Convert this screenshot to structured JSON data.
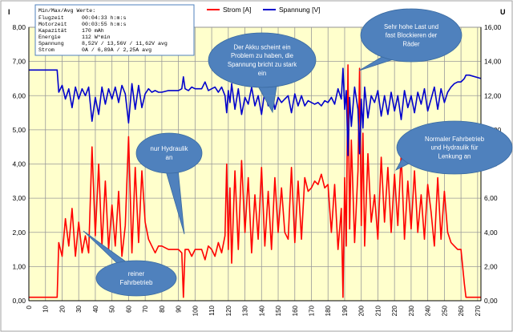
{
  "chart_data": {
    "type": "line",
    "left_axis": {
      "label": "I",
      "ylim": [
        0,
        8
      ],
      "ticks": [
        "0,00",
        "1,00",
        "2,00",
        "3,00",
        "4,00",
        "5,00",
        "6,00",
        "7,00",
        "8,00"
      ]
    },
    "right_axis": {
      "label": "U",
      "ylim": [
        0,
        16
      ],
      "ticks": [
        "0,00",
        "2,00",
        "4,00",
        "6,00",
        "8,00",
        "10,00",
        "12,00",
        "14,00",
        "16,00"
      ]
    },
    "x_axis": {
      "xlim": [
        0,
        272
      ],
      "ticks": [
        0,
        10,
        20,
        30,
        40,
        50,
        60,
        70,
        80,
        90,
        100,
        110,
        120,
        130,
        140,
        150,
        160,
        170,
        180,
        190,
        200,
        210,
        220,
        230,
        240,
        250,
        260,
        270
      ]
    },
    "grid": true,
    "legend_position": "top",
    "series": [
      {
        "name": "Strom [A]",
        "axis": "left",
        "color": "#ff0000",
        "x": [
          0,
          17,
          18,
          20,
          22,
          24,
          26,
          28,
          30,
          32,
          34,
          36,
          38,
          40,
          42,
          44,
          46,
          48,
          50,
          52,
          54,
          56,
          58,
          60,
          62,
          64,
          66,
          68,
          70,
          72,
          74,
          76,
          78,
          80,
          84,
          88,
          90,
          92,
          93,
          94,
          96,
          98,
          100,
          104,
          106,
          108,
          110,
          112,
          114,
          116,
          118,
          119,
          120,
          121,
          122,
          124,
          126,
          128,
          130,
          132,
          134,
          136,
          138,
          140,
          142,
          144,
          146,
          148,
          150,
          152,
          154,
          156,
          158,
          160,
          162,
          164,
          166,
          168,
          170,
          172,
          174,
          176,
          178,
          180,
          182,
          184,
          186,
          188,
          189,
          190,
          191,
          192,
          193,
          194,
          196,
          198,
          199,
          200,
          201,
          202,
          204,
          206,
          208,
          210,
          212,
          214,
          216,
          218,
          220,
          222,
          224,
          226,
          228,
          230,
          232,
          234,
          236,
          238,
          240,
          242,
          244,
          246,
          248,
          250,
          252,
          254,
          256,
          258,
          260,
          262,
          263,
          265,
          272
        ],
        "y": [
          0.1,
          0.1,
          1.7,
          1.3,
          2.4,
          1.6,
          2.7,
          1.3,
          2.3,
          1.4,
          1.9,
          1.4,
          4.5,
          1.9,
          4.0,
          1.6,
          3.5,
          1.5,
          2.8,
          1.6,
          3.2,
          1.3,
          2.2,
          4.8,
          1.4,
          3.9,
          1.7,
          3.8,
          2.3,
          1.8,
          1.6,
          1.4,
          1.6,
          1.6,
          1.5,
          1.5,
          1.5,
          1.4,
          0.1,
          1.5,
          1.5,
          1.3,
          1.5,
          1.5,
          1.2,
          1.6,
          1.5,
          1.3,
          1.7,
          1.4,
          1.9,
          4.0,
          1.5,
          3.3,
          1.1,
          3.8,
          1.5,
          4.1,
          2.0,
          3.6,
          1.4,
          3.1,
          1.8,
          3.9,
          1.6,
          3.2,
          1.5,
          3.6,
          2.0,
          3.3,
          2.0,
          1.8,
          3.9,
          1.7,
          3.5,
          1.8,
          3.6,
          3.2,
          3.3,
          3.5,
          3.4,
          3.7,
          3.3,
          3.4,
          2.0,
          3.4,
          1.5,
          2.7,
          0.1,
          3.6,
          1.6,
          6.9,
          2.1,
          4.7,
          1.7,
          3.8,
          6.8,
          2.2,
          4.9,
          1.6,
          4.3,
          2.3,
          3.1,
          1.8,
          4.2,
          2.3,
          3.9,
          2.0,
          3.7,
          2.2,
          4.3,
          1.8,
          3.5,
          2.1,
          3.8,
          2.0,
          3.1,
          1.8,
          3.4,
          2.6,
          1.6,
          3.6,
          1.8,
          3.2,
          2.0,
          1.7,
          1.6,
          1.5,
          1.5,
          0.5,
          0.1,
          0.1,
          0.1
        ]
      },
      {
        "name": "Spannung [V]",
        "axis": "right",
        "color": "#0000cc",
        "x": [
          0,
          17,
          18,
          20,
          22,
          24,
          26,
          28,
          30,
          32,
          34,
          36,
          38,
          40,
          42,
          44,
          46,
          48,
          50,
          52,
          54,
          56,
          58,
          60,
          62,
          64,
          66,
          68,
          70,
          72,
          74,
          76,
          78,
          80,
          84,
          88,
          90,
          92,
          93,
          94,
          96,
          98,
          100,
          104,
          106,
          108,
          110,
          112,
          114,
          116,
          118,
          119,
          120,
          121,
          122,
          124,
          126,
          128,
          130,
          132,
          134,
          136,
          138,
          140,
          142,
          144,
          146,
          148,
          150,
          152,
          154,
          156,
          158,
          160,
          162,
          164,
          166,
          168,
          170,
          172,
          174,
          176,
          178,
          180,
          182,
          184,
          186,
          188,
          189,
          190,
          191,
          192,
          193,
          194,
          196,
          198,
          199,
          200,
          201,
          202,
          204,
          206,
          208,
          210,
          212,
          214,
          216,
          218,
          220,
          222,
          224,
          226,
          228,
          230,
          232,
          234,
          236,
          238,
          240,
          242,
          244,
          246,
          248,
          250,
          252,
          254,
          256,
          258,
          260,
          262,
          263,
          265,
          272
        ],
        "y": [
          13.5,
          13.5,
          12.2,
          12.6,
          11.8,
          12.4,
          11.3,
          12.5,
          11.8,
          12.4,
          12.0,
          12.5,
          10.5,
          11.9,
          10.9,
          12.5,
          11.5,
          12.4,
          11.8,
          12.5,
          11.6,
          12.6,
          12.1,
          10.4,
          12.7,
          11.2,
          12.6,
          11.3,
          12.1,
          12.4,
          12.2,
          12.3,
          12.2,
          12.2,
          12.3,
          12.3,
          12.3,
          12.4,
          13.1,
          12.4,
          12.3,
          12.5,
          12.4,
          12.4,
          12.8,
          12.3,
          12.4,
          12.5,
          12.2,
          12.5,
          12.0,
          11.0,
          12.3,
          11.6,
          12.7,
          11.2,
          12.4,
          10.9,
          11.9,
          11.5,
          12.5,
          11.4,
          12.0,
          10.9,
          12.3,
          11.4,
          12.3,
          11.2,
          11.9,
          11.6,
          11.8,
          12.0,
          11.0,
          12.1,
          11.4,
          12.0,
          11.4,
          11.7,
          11.6,
          11.5,
          11.6,
          11.4,
          11.7,
          11.6,
          11.9,
          11.5,
          12.4,
          11.8,
          13.6,
          11.2,
          12.3,
          8.5,
          11.9,
          10.2,
          12.5,
          11.2,
          8.6,
          11.8,
          10.1,
          12.5,
          10.7,
          12.0,
          11.6,
          12.3,
          10.8,
          12.0,
          10.9,
          12.2,
          11.1,
          12.0,
          10.6,
          12.3,
          11.3,
          12.0,
          11.0,
          12.2,
          11.5,
          12.4,
          11.1,
          11.8,
          12.5,
          11.2,
          12.4,
          11.6,
          12.2,
          12.5,
          12.7,
          12.8,
          12.8,
          13.0,
          13.2,
          13.2,
          13.0
        ]
      }
    ],
    "annotations": [
      {
        "id": "callout-reiner",
        "text": [
          "reiner",
          "Fahrbetrieb"
        ]
      },
      {
        "id": "callout-hydraulik",
        "text": [
          "nur Hydraulik",
          "an"
        ]
      },
      {
        "id": "callout-akku",
        "text": [
          "Der Akku scheint ein",
          "Problem zu haben, die",
          "Spannung bricht zu stark",
          "ein"
        ]
      },
      {
        "id": "callout-last",
        "text": [
          "Sehr hohe Last und",
          "fast Blockieren der",
          "Räder"
        ]
      },
      {
        "id": "callout-normal",
        "text": [
          "Normaler Fahrbetrieb",
          "und Hydraulik für",
          "Lenkung an"
        ]
      }
    ],
    "info_box": {
      "title": "Min/Max/Avg Werte:",
      "rows": [
        [
          "Flugzeit",
          "00:04:33 h:m:s"
        ],
        [
          "Motorzeit",
          "00:03:55 h:m:s"
        ],
        [
          "Kapazität",
          "170 mAh"
        ],
        [
          "Energie",
          "112 W*min"
        ],
        [
          "Spannung",
          "8,52V / 13,56V / 11,62V avg"
        ],
        [
          "Strom",
          "0A / 6,89A / 2,25A avg"
        ]
      ]
    },
    "colors": {
      "plot_bg": "#ffffcc",
      "callout": "#4f81bd",
      "callout_text": "#ffffff"
    }
  }
}
